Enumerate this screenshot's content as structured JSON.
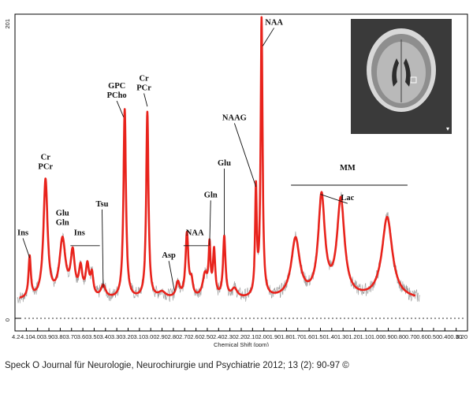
{
  "caption": "Speck O Journal für Neurologie, Neurochirurgie und Psychiatrie 2012; 13 (2): 90-97 ©",
  "inset": {
    "corner_mark": "▾"
  },
  "chart_data": {
    "type": "line",
    "title": "",
    "xlabel": "Chemical Shift (ppm)",
    "ylabel": "",
    "x_reversed": true,
    "xlim": [
      4.2,
      0.2
    ],
    "ylim": [
      0,
      201
    ],
    "y_tick_labels": [
      "201",
      "0"
    ],
    "x_ticks": [
      "4.2",
      "4.10",
      "4.00",
      "3.90",
      "3.80",
      "3.70",
      "3.60",
      "3.50",
      "3.40",
      "3.30",
      "3.20",
      "3.10",
      "3.00",
      "2.90",
      "2.80",
      "2.70",
      "2.60",
      "2.50",
      "2.40",
      "2.30",
      "2.20",
      "2.10",
      "2.00",
      "1.90",
      "1.80",
      "1.70",
      "1.60",
      "1.50",
      "1.40",
      "1.30",
      "1.20",
      "1.10",
      "1.00",
      "0.90",
      "0.80",
      "0.70",
      "0.60",
      "0.50",
      "0.40",
      "0.30",
      "0.20"
    ],
    "x_tick_values": [
      4.2,
      4.1,
      4.0,
      3.9,
      3.8,
      3.7,
      3.6,
      3.5,
      3.4,
      3.3,
      3.2,
      3.1,
      3.0,
      2.9,
      2.8,
      2.7,
      2.6,
      2.5,
      2.4,
      2.3,
      2.2,
      2.1,
      2.0,
      1.9,
      1.8,
      1.7,
      1.6,
      1.5,
      1.4,
      1.3,
      1.2,
      1.1,
      1.0,
      0.9,
      0.8,
      0.7,
      0.6,
      0.5,
      0.4,
      0.3,
      0.2
    ],
    "series": [
      {
        "color": "#e8231c",
        "baseline": 12,
        "peaks": [
          {
            "ppm": 4.07,
            "amp": 27,
            "width": 0.012
          },
          {
            "ppm": 3.93,
            "amp": 78,
            "width": 0.022
          },
          {
            "ppm": 3.78,
            "amp": 38,
            "width": 0.032
          },
          {
            "ppm": 3.69,
            "amp": 28,
            "width": 0.022
          },
          {
            "ppm": 3.62,
            "amp": 18,
            "width": 0.018
          },
          {
            "ppm": 3.56,
            "amp": 20,
            "width": 0.018
          },
          {
            "ppm": 3.52,
            "amp": 14,
            "width": 0.015
          },
          {
            "ppm": 3.42,
            "amp": 8,
            "width": 0.025
          },
          {
            "ppm": 3.23,
            "amp": 125,
            "width": 0.013
          },
          {
            "ppm": 3.03,
            "amp": 123,
            "width": 0.012
          },
          {
            "ppm": 2.9,
            "amp": 4,
            "width": 0.04
          },
          {
            "ppm": 2.76,
            "amp": 10,
            "width": 0.02
          },
          {
            "ppm": 2.68,
            "amp": 42,
            "width": 0.015
          },
          {
            "ppm": 2.64,
            "amp": 10,
            "width": 0.015
          },
          {
            "ppm": 2.52,
            "amp": 15,
            "width": 0.025
          },
          {
            "ppm": 2.48,
            "amp": 32,
            "width": 0.01
          },
          {
            "ppm": 2.44,
            "amp": 30,
            "width": 0.012
          },
          {
            "ppm": 2.35,
            "amp": 40,
            "width": 0.013
          },
          {
            "ppm": 2.26,
            "amp": 6,
            "width": 0.03
          },
          {
            "ppm": 2.07,
            "amp": 70,
            "width": 0.009
          },
          {
            "ppm": 2.02,
            "amp": 183,
            "width": 0.01
          },
          {
            "ppm": 1.72,
            "amp": 39,
            "width": 0.045
          },
          {
            "ppm": 1.49,
            "amp": 66,
            "width": 0.035
          },
          {
            "ppm": 1.32,
            "amp": 64,
            "width": 0.04
          },
          {
            "ppm": 0.91,
            "amp": 54,
            "width": 0.055
          }
        ]
      }
    ],
    "annotations": [
      {
        "lines": [
          "Ins"
        ],
        "ppm": 4.13,
        "value": 55,
        "pointer": {
          "ppm": 4.07,
          "value": 40
        }
      },
      {
        "lines": [
          "Cr",
          "PCr"
        ],
        "ppm": 3.93,
        "value": 105
      },
      {
        "lines": [
          "Glu",
          "Gln"
        ],
        "ppm": 3.78,
        "value": 68
      },
      {
        "lines": [
          "Ins"
        ],
        "ppm": 3.63,
        "value": 55,
        "bracket": {
          "from": 3.71,
          "to": 3.45,
          "value": 48
        }
      },
      {
        "lines": [
          "Tsu"
        ],
        "ppm": 3.43,
        "value": 74,
        "pointer": {
          "ppm": 3.42,
          "value": 20
        }
      },
      {
        "lines": [
          "GPC",
          "PCho"
        ],
        "ppm": 3.3,
        "value": 152,
        "pointer": {
          "ppm": 3.24,
          "value": 133
        }
      },
      {
        "lines": [
          "Cr",
          "PCr"
        ],
        "ppm": 3.06,
        "value": 157,
        "pointer": {
          "ppm": 3.03,
          "value": 140
        }
      },
      {
        "lines": [
          "Asp"
        ],
        "ppm": 2.84,
        "value": 40,
        "pointer": {
          "ppm": 2.79,
          "value": 18
        }
      },
      {
        "lines": [
          "NAA"
        ],
        "ppm": 2.61,
        "value": 55,
        "bracket": {
          "from": 2.71,
          "to": 2.49,
          "value": 48
        }
      },
      {
        "lines": [
          "Gln"
        ],
        "ppm": 2.47,
        "value": 80,
        "pointer": {
          "ppm": 2.48,
          "value": 48
        }
      },
      {
        "lines": [
          "Glu"
        ],
        "ppm": 2.35,
        "value": 101,
        "pointer": {
          "ppm": 2.35,
          "value": 55
        }
      },
      {
        "lines": [
          "NAAG"
        ],
        "ppm": 2.26,
        "value": 131,
        "pointer": {
          "ppm": 2.07,
          "value": 87
        }
      },
      {
        "lines": [
          "NAA"
        ],
        "ppm": 1.91,
        "value": 194,
        "pointer": {
          "ppm": 2.01,
          "value": 180
        }
      },
      {
        "lines": [
          "MM"
        ],
        "ppm": 1.26,
        "value": 98,
        "bracket": {
          "from": 1.76,
          "to": 0.73,
          "value": 88
        }
      },
      {
        "lines": [
          "Lac"
        ],
        "ppm": 1.26,
        "value": 78,
        "pointer": {
          "ppm": 1.5,
          "value": 82
        }
      }
    ],
    "grid": false,
    "legend": "none"
  }
}
